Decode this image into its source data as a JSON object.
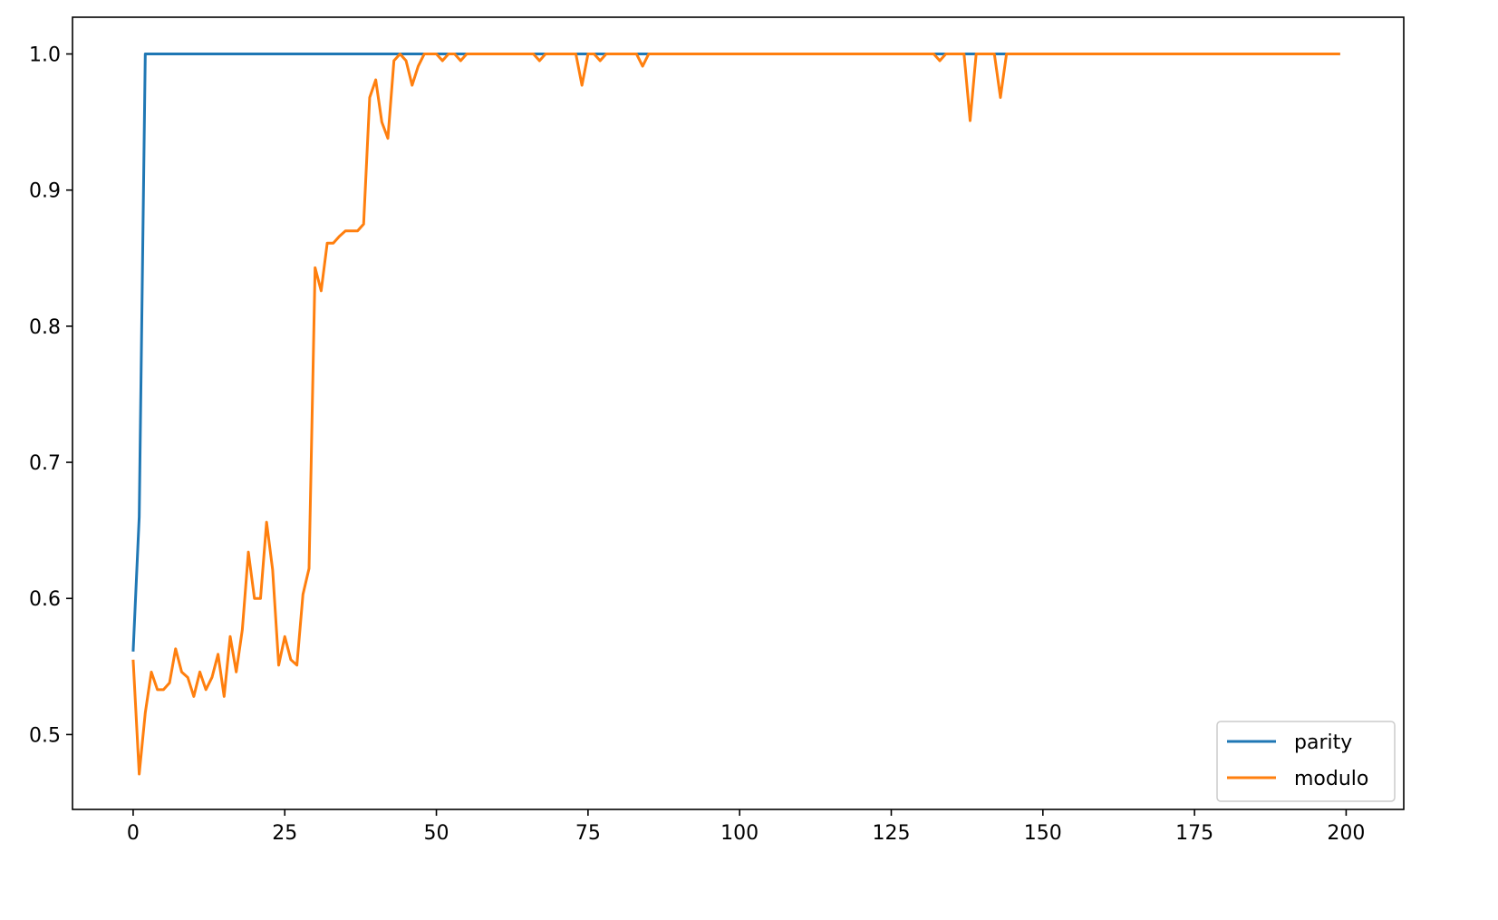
{
  "chart_data": {
    "type": "line",
    "title": "",
    "xlabel": "",
    "ylabel": "",
    "xlim": [
      -10,
      209.5
    ],
    "ylim": [
      0.445,
      1.027
    ],
    "xticks": [
      0,
      25,
      50,
      75,
      100,
      125,
      150,
      175,
      200
    ],
    "yticks": [
      0.5,
      0.6,
      0.7,
      0.8,
      0.9,
      1.0
    ],
    "xtick_labels": [
      "0",
      "25",
      "50",
      "75",
      "100",
      "125",
      "150",
      "175",
      "200"
    ],
    "ytick_labels": [
      "0.5",
      "0.6",
      "0.7",
      "0.8",
      "0.9",
      "1.0"
    ],
    "grid": false,
    "legend_position": "lower-right",
    "series": [
      {
        "name": "parity",
        "color": "#1f77b4",
        "points": [
          [
            0,
            0.561
          ],
          [
            1,
            0.66
          ],
          [
            2,
            1.0
          ],
          [
            199,
            1.0
          ]
        ]
      },
      {
        "name": "modulo",
        "color": "#ff7f0e",
        "points": [
          [
            0,
            0.555
          ],
          [
            1,
            0.471
          ],
          [
            2,
            0.516
          ],
          [
            3,
            0.546
          ],
          [
            4,
            0.533
          ],
          [
            5,
            0.533
          ],
          [
            6,
            0.538
          ],
          [
            7,
            0.563
          ],
          [
            8,
            0.546
          ],
          [
            9,
            0.542
          ],
          [
            10,
            0.528
          ],
          [
            11,
            0.546
          ],
          [
            12,
            0.533
          ],
          [
            13,
            0.542
          ],
          [
            14,
            0.559
          ],
          [
            15,
            0.528
          ],
          [
            16,
            0.572
          ],
          [
            17,
            0.546
          ],
          [
            18,
            0.577
          ],
          [
            19,
            0.634
          ],
          [
            20,
            0.6
          ],
          [
            21,
            0.6
          ],
          [
            22,
            0.656
          ],
          [
            23,
            0.621
          ],
          [
            24,
            0.551
          ],
          [
            25,
            0.572
          ],
          [
            26,
            0.555
          ],
          [
            27,
            0.551
          ],
          [
            28,
            0.603
          ],
          [
            29,
            0.622
          ],
          [
            30,
            0.843
          ],
          [
            31,
            0.826
          ],
          [
            32,
            0.861
          ],
          [
            33,
            0.861
          ],
          [
            34,
            0.866
          ],
          [
            35,
            0.87
          ],
          [
            36,
            0.87
          ],
          [
            37,
            0.87
          ],
          [
            38,
            0.875
          ],
          [
            39,
            0.968
          ],
          [
            40,
            0.981
          ],
          [
            41,
            0.95
          ],
          [
            42,
            0.938
          ],
          [
            43,
            0.995
          ],
          [
            44,
            1.0
          ],
          [
            45,
            0.995
          ],
          [
            46,
            0.977
          ],
          [
            47,
            0.991
          ],
          [
            48,
            1.0
          ],
          [
            49,
            1.0
          ],
          [
            50,
            1.0
          ],
          [
            51,
            0.995
          ],
          [
            52,
            1.0
          ],
          [
            53,
            1.0
          ],
          [
            54,
            0.995
          ],
          [
            55,
            1.0
          ],
          [
            66,
            1.0
          ],
          [
            67,
            0.995
          ],
          [
            68,
            1.0
          ],
          [
            73,
            1.0
          ],
          [
            74,
            0.977
          ],
          [
            75,
            1.0
          ],
          [
            76,
            1.0
          ],
          [
            77,
            0.995
          ],
          [
            78,
            1.0
          ],
          [
            83,
            1.0
          ],
          [
            84,
            0.991
          ],
          [
            85,
            1.0
          ],
          [
            132,
            1.0
          ],
          [
            133,
            0.995
          ],
          [
            134,
            1.0
          ],
          [
            137,
            1.0
          ],
          [
            138,
            0.951
          ],
          [
            139,
            1.0
          ],
          [
            142,
            1.0
          ],
          [
            143,
            0.968
          ],
          [
            144,
            1.0
          ],
          [
            199,
            1.0
          ]
        ]
      }
    ]
  }
}
